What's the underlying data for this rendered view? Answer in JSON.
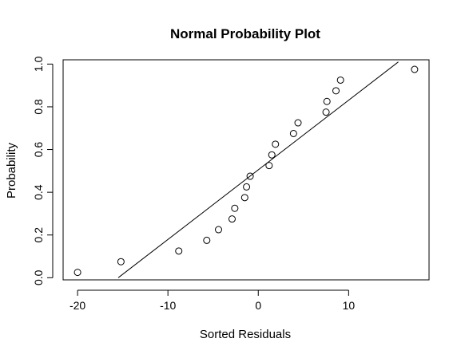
{
  "chart_data": {
    "type": "scatter",
    "title": "Normal Probability Plot",
    "xlabel": "Sorted Residuals",
    "ylabel": "Probability",
    "xlim": [
      -21.6,
      18.9
    ],
    "ylim": [
      -0.01,
      1.02
    ],
    "xticks": [
      -20,
      -10,
      0,
      10
    ],
    "xtick_labels": [
      "-20",
      "-10",
      "0",
      "10"
    ],
    "yticks": [
      0.0,
      0.2,
      0.4,
      0.6,
      0.8,
      1.0
    ],
    "ytick_labels": [
      "0.0",
      "0.2",
      "0.4",
      "0.6",
      "0.8",
      "1.0"
    ],
    "grid": false,
    "legend": "none",
    "points": {
      "x": [
        -20.0,
        -15.2,
        -8.8,
        -5.7,
        -4.4,
        -2.9,
        -2.6,
        -1.5,
        -1.3,
        -0.9,
        1.2,
        1.5,
        1.9,
        3.9,
        4.4,
        7.5,
        7.6,
        8.6,
        9.1,
        17.3
      ],
      "y": [
        0.025,
        0.075,
        0.125,
        0.175,
        0.225,
        0.275,
        0.325,
        0.375,
        0.425,
        0.475,
        0.525,
        0.575,
        0.625,
        0.675,
        0.725,
        0.775,
        0.825,
        0.875,
        0.925,
        0.975
      ]
    },
    "fit_line": {
      "x": [
        -15.5,
        15.5
      ],
      "y": [
        0.0,
        1.01
      ]
    }
  }
}
